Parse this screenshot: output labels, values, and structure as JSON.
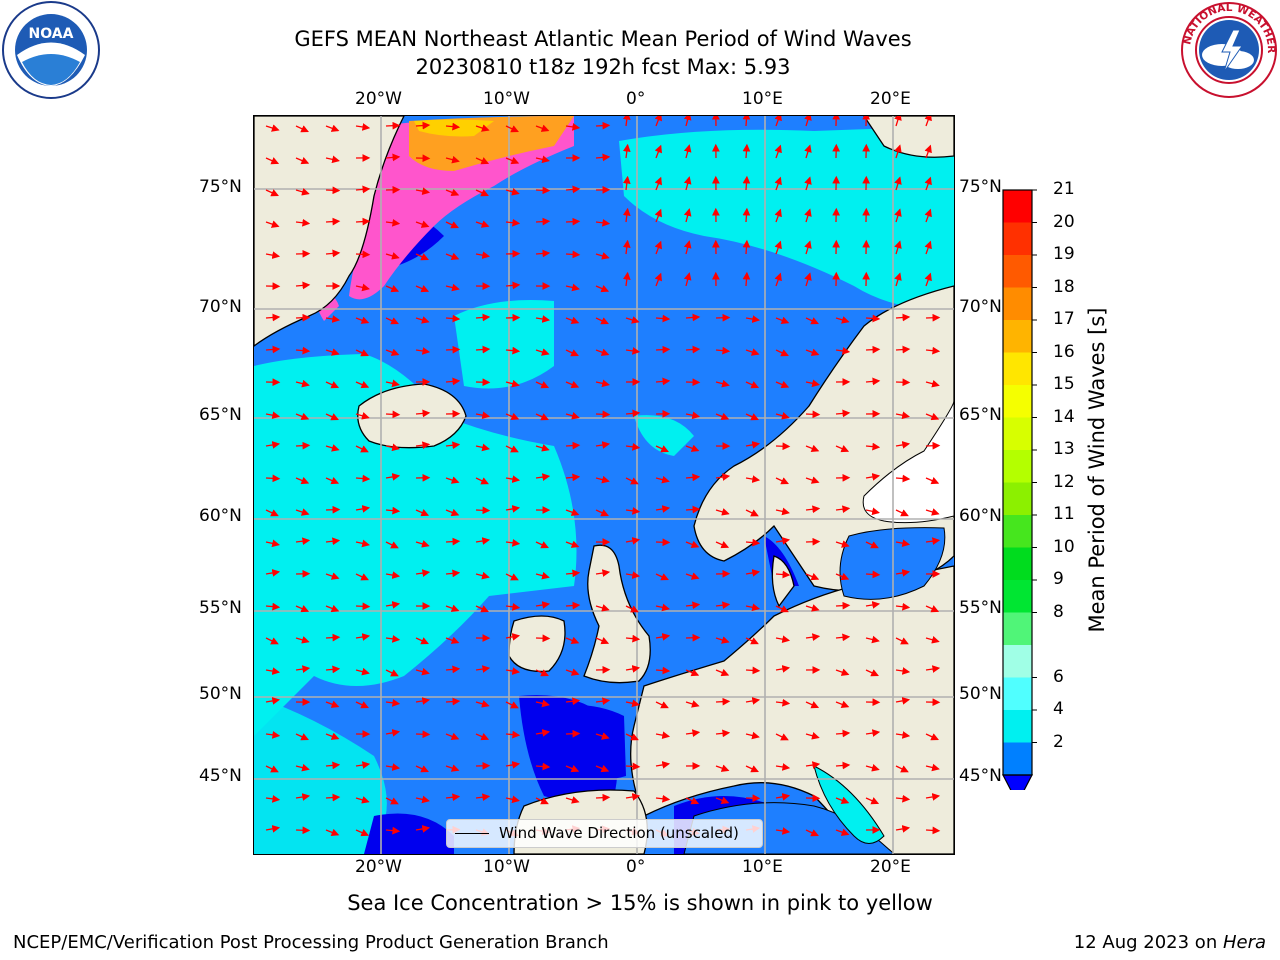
{
  "header": {
    "title_line1": "GEFS MEAN Northeast Atlantic Mean Period of Wind Waves",
    "title_line2": "20230810 t18z 192h fcst   Max: 5.93"
  },
  "logos": {
    "left": "NOAA",
    "right": "NATIONAL WEATHER SERVICE"
  },
  "axes": {
    "lon_ticks": [
      "20°W",
      "10°W",
      "0°",
      "10°E",
      "20°E"
    ],
    "lat_ticks": [
      "75°N",
      "70°N",
      "65°N",
      "60°N",
      "55°N",
      "50°N",
      "45°N"
    ]
  },
  "legend": {
    "label": "Wind Wave Direction (unscaled)"
  },
  "colorbar": {
    "label": "Mean Period of Wind Waves [s]",
    "ticks": [
      "21",
      "20",
      "19",
      "18",
      "17",
      "16",
      "15",
      "14",
      "13",
      "12",
      "11",
      "10",
      "9",
      "8",
      "6",
      "4",
      "2"
    ],
    "colors": [
      "#ff0000",
      "#ff3000",
      "#ff5a00",
      "#ff8c00",
      "#ffb400",
      "#ffe600",
      "#f5ff00",
      "#d7ff00",
      "#b4ff00",
      "#8cf000",
      "#46e61e",
      "#00dc1e",
      "#00e632",
      "#50f578",
      "#a0ffe6",
      "#50ffff",
      "#00f0f0",
      "#0080ff"
    ],
    "extend_color": "#0000ff"
  },
  "note": "Sea Ice Concentration > 15% is shown in pink to yellow",
  "footer": {
    "left": "NCEP/EMC/Verification Post Processing Product Generation Branch",
    "right_date": "12 Aug 2023 on ",
    "right_host": "Hera"
  }
}
